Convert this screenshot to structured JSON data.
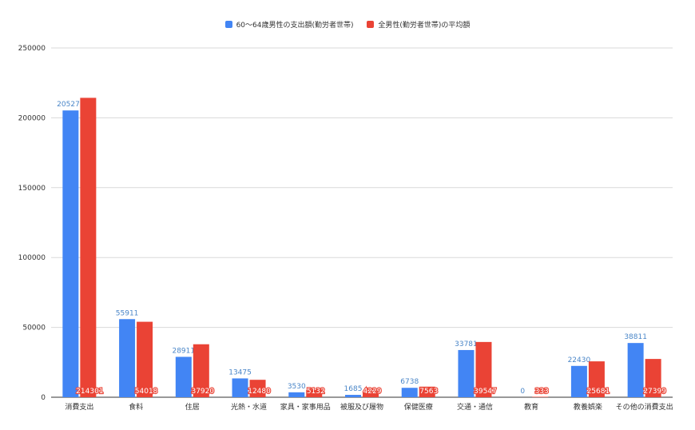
{
  "chart_data": {
    "type": "bar",
    "title": "",
    "xlabel": "",
    "ylabel": "",
    "ylim": [
      0,
      250000
    ],
    "yticks": [
      "0",
      "50000",
      "100000",
      "150000",
      "200000",
      "250000"
    ],
    "grid": true,
    "legend_position": "top-center",
    "categories": [
      "消費支出",
      "食料",
      "住居",
      "光熱・水道",
      "家具・家事用品",
      "被服及び履物",
      "保健医療",
      "交通・通信",
      "教育",
      "教養娯楽",
      "その他の消費支出"
    ],
    "series": [
      {
        "name": "60〜64歳男性の支出額(勤労者世帯)",
        "color": "#4285f4",
        "label_color": "#4a86c8",
        "values": [
          205271,
          55911,
          28911,
          13475,
          3530,
          1685,
          6738,
          33781,
          0,
          22430,
          38811
        ]
      },
      {
        "name": "全男性(勤労者世帯)の平均額",
        "color": "#ea4335",
        "label_color": "#ffffff",
        "values": [
          214301,
          54018,
          37920,
          12480,
          5132,
          4229,
          7563,
          39547,
          333,
          25681,
          27399
        ]
      }
    ]
  }
}
